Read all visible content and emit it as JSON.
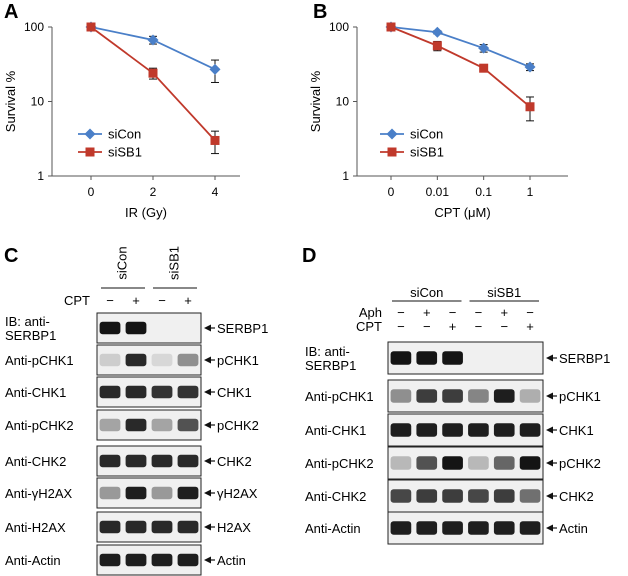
{
  "panels": {
    "A": {
      "letter": "A"
    },
    "B": {
      "letter": "B"
    },
    "C": {
      "letter": "C"
    },
    "D": {
      "letter": "D"
    }
  },
  "chart_data": [
    {
      "panel": "A",
      "type": "line",
      "xlabel": "IR (Gy)",
      "ylabel": "Survival %",
      "y_scale": "log",
      "ylim": [
        1,
        100
      ],
      "y_ticks": [
        1,
        10,
        100
      ],
      "categories": [
        "0",
        "2",
        "4"
      ],
      "legend_position": "bottom-left",
      "series": [
        {
          "name": "siCon",
          "color": "#4a7fc8",
          "marker": "diamond",
          "values": [
            100,
            67,
            27
          ],
          "err": [
            3,
            8,
            9
          ]
        },
        {
          "name": "siSB1",
          "color": "#c0392b",
          "marker": "square",
          "values": [
            100,
            24,
            3
          ],
          "err": [
            3,
            4,
            1
          ]
        }
      ]
    },
    {
      "panel": "B",
      "type": "line",
      "xlabel": "CPT (μM)",
      "ylabel": "Survival %",
      "y_scale": "log",
      "ylim": [
        1,
        100
      ],
      "y_ticks": [
        1,
        10,
        100
      ],
      "categories": [
        "0",
        "0.01",
        "0.1",
        "1"
      ],
      "legend_position": "bottom-left",
      "series": [
        {
          "name": "siCon",
          "color": "#4a7fc8",
          "marker": "diamond",
          "values": [
            100,
            85,
            52,
            29
          ],
          "err": [
            3,
            4,
            6,
            3
          ]
        },
        {
          "name": "siSB1",
          "color": "#c0392b",
          "marker": "square",
          "values": [
            100,
            56,
            28,
            8.5
          ],
          "err": [
            3,
            8,
            2,
            3
          ]
        }
      ]
    }
  ],
  "blots": {
    "C": {
      "groups": [
        "siCon",
        "siSB1"
      ],
      "treatments": [
        {
          "label": "CPT",
          "signs": [
            "−",
            "+",
            "−",
            "+"
          ]
        }
      ],
      "rows": [
        {
          "antibody": "IB: anti-\nSERBP1",
          "band": "SERBP1",
          "intensity": [
            1,
            1,
            0,
            0
          ]
        },
        {
          "antibody": "Anti-pCHK1",
          "band": "pCHK1",
          "intensity": [
            0.1,
            0.9,
            0.05,
            0.4
          ]
        },
        {
          "antibody": "Anti-CHK1",
          "band": "CHK1",
          "intensity": [
            0.9,
            0.9,
            0.85,
            0.85
          ]
        },
        {
          "antibody": "Anti-pCHK2",
          "band": "pCHK2",
          "intensity": [
            0.3,
            0.9,
            0.3,
            0.7
          ]
        },
        {
          "antibody": "Anti-CHK2",
          "band": "CHK2",
          "intensity": [
            0.9,
            0.9,
            0.9,
            0.9
          ]
        },
        {
          "antibody": "Anti-γH2AX",
          "band": "γH2AX",
          "intensity": [
            0.35,
            0.95,
            0.35,
            0.95
          ]
        },
        {
          "antibody": "Anti-H2AX",
          "band": "H2AX",
          "intensity": [
            0.9,
            0.9,
            0.9,
            0.9
          ]
        },
        {
          "antibody": "Anti-Actin",
          "band": "Actin",
          "intensity": [
            0.95,
            0.95,
            0.95,
            0.95
          ]
        }
      ]
    },
    "D": {
      "groups": [
        "siCon",
        "siSB1"
      ],
      "treatments": [
        {
          "label": "Aph",
          "signs": [
            "−",
            "+",
            "−",
            "−",
            "+",
            "−"
          ]
        },
        {
          "label": "CPT",
          "signs": [
            "−",
            "−",
            "+",
            "−",
            "−",
            "+"
          ]
        }
      ],
      "rows": [
        {
          "antibody": "IB: anti-\nSERBP1",
          "band": "SERBP1",
          "intensity": [
            1,
            1,
            1,
            0,
            0,
            0
          ]
        },
        {
          "antibody": "Anti-pCHK1",
          "band": "pCHK1",
          "intensity": [
            0.4,
            0.8,
            0.8,
            0.45,
            0.95,
            0.25
          ]
        },
        {
          "antibody": "Anti-CHK1",
          "band": "CHK1",
          "intensity": [
            0.95,
            0.95,
            0.95,
            0.95,
            0.95,
            0.95
          ]
        },
        {
          "antibody": "Anti-pCHK2",
          "band": "pCHK2",
          "intensity": [
            0.2,
            0.7,
            1,
            0.2,
            0.6,
            1
          ]
        },
        {
          "antibody": "Anti-CHK2",
          "band": "CHK2",
          "intensity": [
            0.75,
            0.8,
            0.8,
            0.75,
            0.8,
            0.55
          ]
        },
        {
          "antibody": "Anti-Actin",
          "band": "Actin",
          "intensity": [
            0.95,
            0.95,
            0.95,
            0.95,
            0.95,
            0.95
          ]
        }
      ]
    }
  }
}
